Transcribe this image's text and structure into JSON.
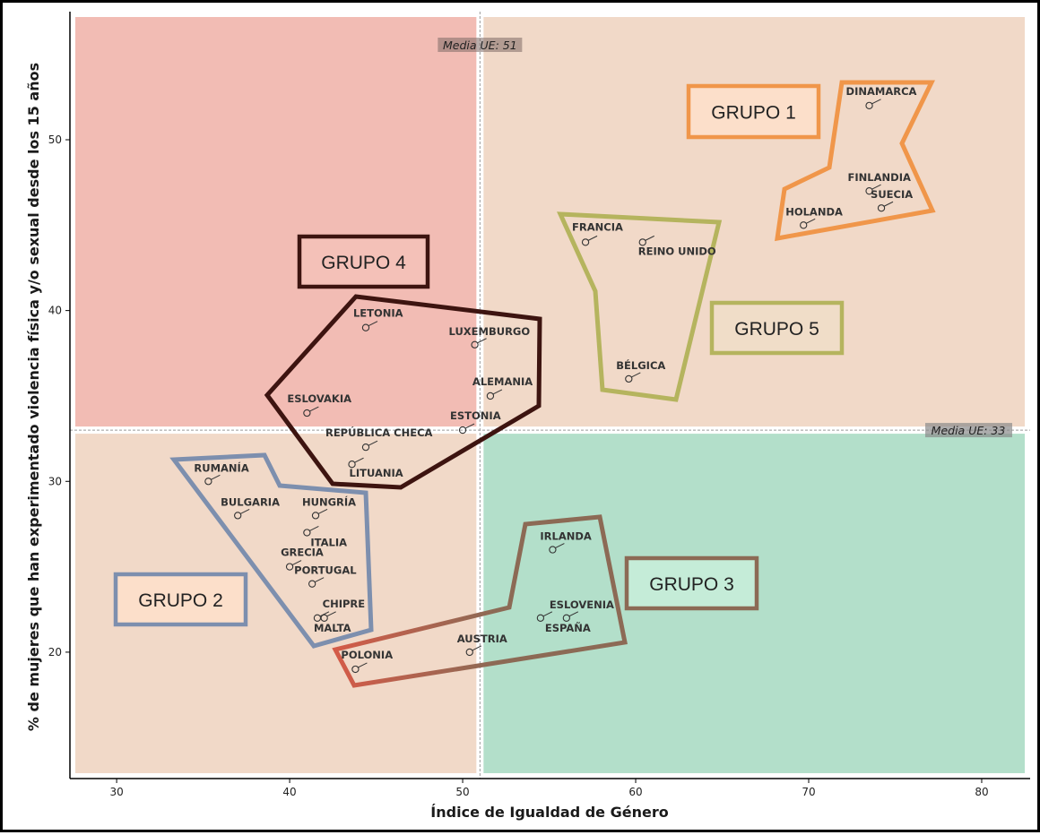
{
  "chart_data": {
    "type": "scatter",
    "xlabel": "Índice de Igualdad de Género",
    "ylabel": "% de mujeres que han experimentado violencia física y/o sexual desde los 15 años",
    "xlim": [
      27.3,
      82.8
    ],
    "ylim": [
      12.6,
      57.5
    ],
    "xticks": [
      30,
      40,
      50,
      60,
      70,
      80
    ],
    "yticks": [
      20,
      30,
      40,
      50
    ],
    "grid": false,
    "mean_x": {
      "value": 51,
      "label": "Media UE: 51"
    },
    "mean_y": {
      "value": 33,
      "label": "Media UE: 33"
    },
    "quadrant_colors": {
      "top_left": "#f2bcb4",
      "top_right": "#f1d9c8",
      "bottom_left": "#f1d9c8",
      "bottom_right": "#b3dfca"
    },
    "points": [
      {
        "name": "DINAMARCA",
        "x": 73.5,
        "y": 52
      },
      {
        "name": "FINLANDIA",
        "x": 73.5,
        "y": 47
      },
      {
        "name": "SUECIA",
        "x": 74.2,
        "y": 46
      },
      {
        "name": "HOLANDA",
        "x": 69.7,
        "y": 45
      },
      {
        "name": "FRANCIA",
        "x": 57.1,
        "y": 44
      },
      {
        "name": "REINO UNIDO",
        "x": 60.4,
        "y": 44
      },
      {
        "name": "BÉLGICA",
        "x": 59.6,
        "y": 36
      },
      {
        "name": "LETONIA",
        "x": 44.4,
        "y": 39
      },
      {
        "name": "LUXEMBURGO",
        "x": 50.7,
        "y": 38
      },
      {
        "name": "ALEMANIA",
        "x": 51.6,
        "y": 35
      },
      {
        "name": "ESLOVAKIA",
        "x": 41.0,
        "y": 34
      },
      {
        "name": "ESTONIA",
        "x": 50.0,
        "y": 33
      },
      {
        "name": "REPÚBLICA CHECA",
        "x": 44.4,
        "y": 32
      },
      {
        "name": "LITUANIA",
        "x": 43.6,
        "y": 31
      },
      {
        "name": "RUMANÍA",
        "x": 35.3,
        "y": 30
      },
      {
        "name": "BULGARIA",
        "x": 37.0,
        "y": 28
      },
      {
        "name": "HUNGRÍA",
        "x": 41.5,
        "y": 28
      },
      {
        "name": "ITALIA",
        "x": 41.0,
        "y": 27
      },
      {
        "name": "GRECIA",
        "x": 40.0,
        "y": 25
      },
      {
        "name": "PORTUGAL",
        "x": 41.3,
        "y": 24
      },
      {
        "name": "CHIPRE",
        "x": 42.0,
        "y": 22
      },
      {
        "name": "MALTA",
        "x": 41.6,
        "y": 22
      },
      {
        "name": "IRLANDA",
        "x": 55.2,
        "y": 26
      },
      {
        "name": "ESLOVENIA",
        "x": 56.0,
        "y": 22
      },
      {
        "name": "ESPAÑA",
        "x": 54.5,
        "y": 22
      },
      {
        "name": "AUSTRIA",
        "x": 50.4,
        "y": 20
      },
      {
        "name": "POLONIA",
        "x": 43.8,
        "y": 19
      }
    ],
    "groups": [
      {
        "name": "GRUPO 1",
        "color": "#f0964a"
      },
      {
        "name": "GRUPO 2",
        "color": "#7d8fae"
      },
      {
        "name": "GRUPO 3",
        "color": "#8c6a55"
      },
      {
        "name": "GRUPO 4",
        "color": "#3d1410"
      },
      {
        "name": "GRUPO 5",
        "color": "#b5b45e"
      }
    ],
    "group3_edge_colors": [
      "#d45b48",
      "#8c6a55"
    ]
  }
}
